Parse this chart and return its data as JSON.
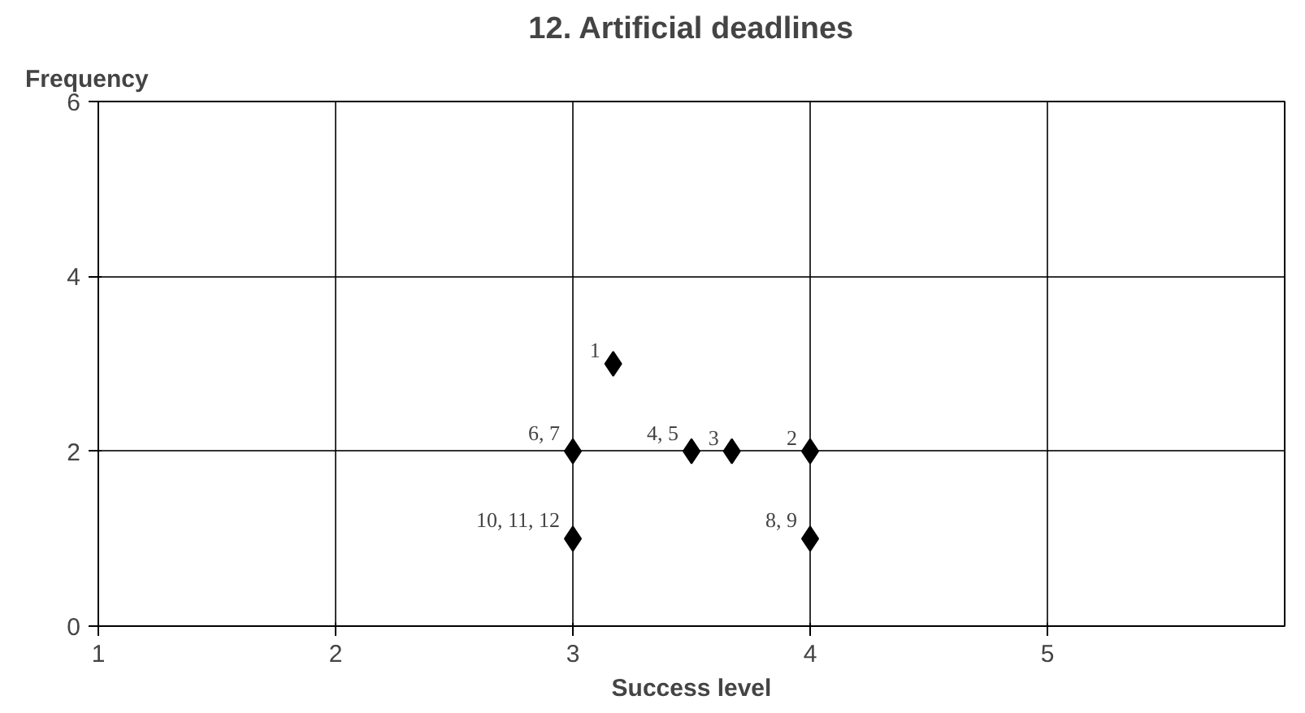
{
  "chart_data": {
    "type": "scatter",
    "title": "12. Artificial deadlines",
    "xlabel": "Success level",
    "ylabel": "Frequency",
    "x": [
      3.17,
      4,
      3.67,
      3.5,
      3,
      4,
      3
    ],
    "series": [
      {
        "color": "#000000",
        "values": [
          3,
          2,
          2,
          2,
          2,
          1,
          1
        ]
      }
    ],
    "marker": "diamond",
    "grid": true,
    "xlim": [
      1,
      6
    ],
    "xticks": [
      1,
      2,
      3,
      4,
      5
    ],
    "ylim": [
      0,
      6
    ],
    "yticks": [
      0,
      2,
      4,
      6
    ],
    "annotations": [
      {
        "text": "1",
        "x": 3.17,
        "y": 3
      },
      {
        "text": "2",
        "x": 4,
        "y": 2
      },
      {
        "text": "3",
        "x": 3.67,
        "y": 2
      },
      {
        "text": "4, 5",
        "x": 3.5,
        "y": 2
      },
      {
        "text": "6, 7",
        "x": 3,
        "y": 2
      },
      {
        "text": "8, 9",
        "x": 4,
        "y": 1
      },
      {
        "text": "10, 11, 12",
        "x": 3,
        "y": 1
      }
    ]
  }
}
